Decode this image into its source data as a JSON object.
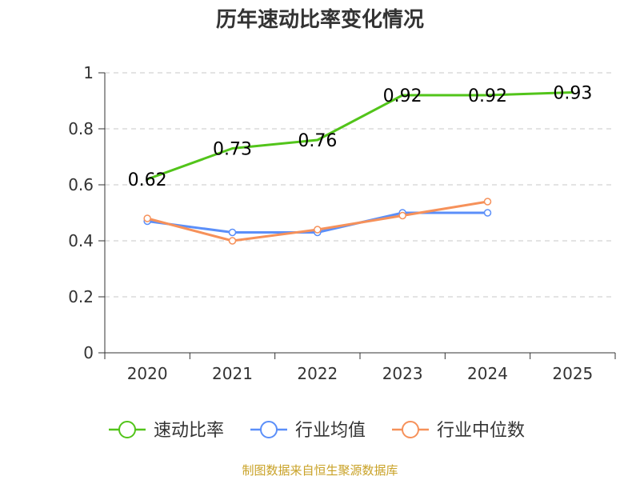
{
  "chart_data": {
    "type": "line",
    "title": "历年速动比率变化情况",
    "categories": [
      "2020",
      "2021",
      "2022",
      "2023",
      "2024",
      "2025"
    ],
    "ylim": [
      0,
      1
    ],
    "yticks": [
      "0",
      "0.2",
      "0.4",
      "0.6",
      "0.8",
      "1"
    ],
    "ytick_values": [
      0,
      0.2,
      0.4,
      0.6,
      0.8,
      1
    ],
    "grid": true,
    "legend_position": "bottom",
    "series": [
      {
        "name": "速动比率",
        "color": "#52c41a",
        "values": [
          0.62,
          0.73,
          0.76,
          0.92,
          0.92,
          0.93
        ],
        "labels": [
          "0.62",
          "0.73",
          "0.76",
          "0.92",
          "0.92",
          "0.93"
        ],
        "show_markers": false,
        "show_labels": true
      },
      {
        "name": "行业均值",
        "color": "#5b8ff9",
        "values": [
          0.47,
          0.43,
          0.43,
          0.5,
          0.5,
          null
        ],
        "show_markers": true,
        "show_labels": false
      },
      {
        "name": "行业中位数",
        "color": "#f6915a",
        "values": [
          0.48,
          0.4,
          0.44,
          0.49,
          0.54,
          null
        ],
        "show_markers": true,
        "show_labels": false
      }
    ],
    "source": "制图数据来自恒生聚源数据库"
  }
}
